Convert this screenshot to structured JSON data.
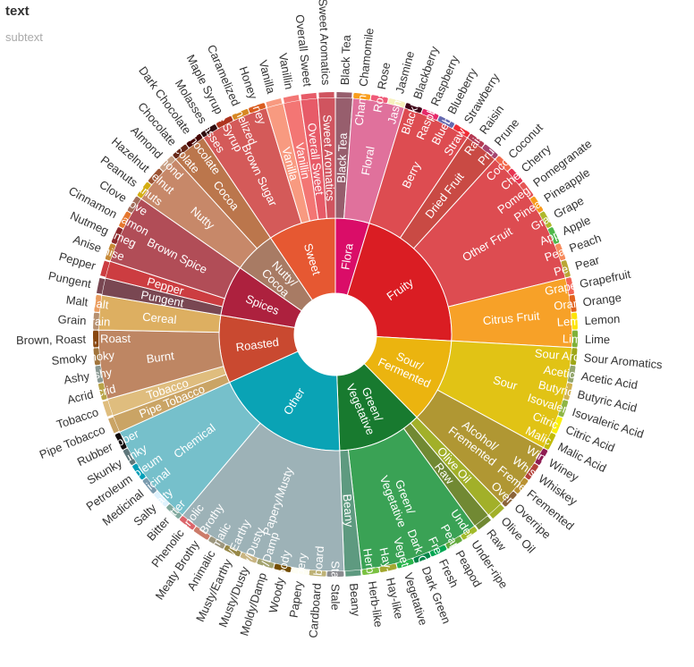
{
  "chart_data": {
    "type": "sunburst",
    "title": "text",
    "subtitle": "subtext",
    "tree": [
      {
        "name": "Flora",
        "color": "#da0d68",
        "children": [
          {
            "name": "Black Tea",
            "value": 1,
            "color": "#975e6d"
          },
          {
            "name": "Floral",
            "color": "#e0719c",
            "children": [
              {
                "name": "Chamomile",
                "value": 1,
                "color": "#f99e1c"
              },
              {
                "name": "Rose",
                "value": 1,
                "color": "#ef5a78"
              },
              {
                "name": "Jasmine",
                "value": 1,
                "color": "#f7f1bd"
              }
            ]
          }
        ]
      },
      {
        "name": "Fruity",
        "color": "#da1d23",
        "children": [
          {
            "name": "Berry",
            "color": "#dd4c51",
            "children": [
              {
                "name": "Blackberry",
                "value": 1,
                "color": "#3e0317"
              },
              {
                "name": "Raspberry",
                "value": 1,
                "color": "#e62969"
              },
              {
                "name": "Blueberry",
                "value": 1,
                "color": "#6569b0"
              },
              {
                "name": "Strawberry",
                "value": 1,
                "color": "#ef2d36"
              }
            ]
          },
          {
            "name": "Dried Fruit",
            "color": "#c94a44",
            "children": [
              {
                "name": "Raisin",
                "value": 1,
                "color": "#b53b54"
              },
              {
                "name": "Prune",
                "value": 1,
                "color": "#a5446f"
              }
            ]
          },
          {
            "name": "Other Fruit",
            "color": "#dd4c51",
            "children": [
              {
                "name": "Coconut",
                "value": 1,
                "color": "#f2684b"
              },
              {
                "name": "Cherry",
                "value": 1,
                "color": "#e73451"
              },
              {
                "name": "Pomegranate",
                "value": 1,
                "color": "#e65656"
              },
              {
                "name": "Pineapple",
                "value": 1,
                "color": "#f89a1c"
              },
              {
                "name": "Grape",
                "value": 1,
                "color": "#aeb92c"
              },
              {
                "name": "Apple",
                "value": 1,
                "color": "#4eb849"
              },
              {
                "name": "Peach",
                "value": 1,
                "color": "#f68a5c"
              },
              {
                "name": "Pear",
                "value": 1,
                "color": "#baa635"
              }
            ]
          },
          {
            "name": "Citrus Fruit",
            "color": "#f7a128",
            "children": [
              {
                "name": "Grapefruit",
                "value": 1,
                "color": "#f26355"
              },
              {
                "name": "Orange",
                "value": 1,
                "color": "#e2631e"
              },
              {
                "name": "Lemon",
                "value": 1,
                "color": "#fde404"
              },
              {
                "name": "Lime",
                "value": 1,
                "color": "#7eb138"
              }
            ]
          }
        ]
      },
      {
        "name": "Sour/\nFermented",
        "color": "#ebb40f",
        "children": [
          {
            "name": "Sour",
            "color": "#e1c315",
            "children": [
              {
                "name": "Sour Aromatics",
                "value": 1,
                "color": "#9ea718"
              },
              {
                "name": "Acetic Acid",
                "value": 1,
                "color": "#94a76f"
              },
              {
                "name": "Butyric Acid",
                "value": 1,
                "color": "#d0b24f"
              },
              {
                "name": "Isovaleric Acid",
                "value": 1,
                "color": "#8eb646"
              },
              {
                "name": "Citric Acid",
                "value": 1,
                "color": "#faef07"
              },
              {
                "name": "Malic Acid",
                "value": 1,
                "color": "#c1ba07"
              }
            ]
          },
          {
            "name": "Alcohol/\nFremented",
            "color": "#b09733",
            "children": [
              {
                "name": "Winey",
                "value": 1,
                "color": "#8f1c53"
              },
              {
                "name": "Whiskey",
                "value": 1,
                "color": "#b34039"
              },
              {
                "name": "Fremented",
                "value": 1,
                "color": "#ba9232"
              },
              {
                "name": "Overripe",
                "value": 1,
                "color": "#8b6439"
              }
            ]
          }
        ]
      },
      {
        "name": "Green/\nVegetative",
        "color": "#187a2f",
        "children": [
          {
            "name": "Olive Oil",
            "value": 1,
            "color": "#a2b029"
          },
          {
            "name": "Raw",
            "value": 1,
            "color": "#718933"
          },
          {
            "name": "Green/\nVegetative",
            "color": "#3aa255",
            "children": [
              {
                "name": "Under-ripe",
                "value": 1,
                "color": "#a2bb2b"
              },
              {
                "name": "Peapod",
                "value": 1,
                "color": "#62aa3c"
              },
              {
                "name": "Fresh",
                "value": 1,
                "color": "#03a653"
              },
              {
                "name": "Dark Green",
                "value": 1,
                "color": "#038549"
              },
              {
                "name": "Vegetative",
                "value": 1,
                "color": "#28b44b"
              },
              {
                "name": "Hay-like",
                "value": 1,
                "color": "#a3a830"
              },
              {
                "name": "Herb-like",
                "value": 1,
                "color": "#7ac141"
              }
            ]
          },
          {
            "name": "Beany",
            "value": 1,
            "color": "#5e9a80"
          }
        ]
      },
      {
        "name": "Other",
        "color": "#0aa3b5",
        "children": [
          {
            "name": "Papery/Musty",
            "color": "#9db2b7",
            "children": [
              {
                "name": "Stale",
                "value": 1,
                "color": "#8b8c90"
              },
              {
                "name": "Cardboard",
                "value": 1,
                "color": "#beb276"
              },
              {
                "name": "Papery",
                "value": 1,
                "color": "#fefef4"
              },
              {
                "name": "Woody",
                "value": 1,
                "color": "#744e03"
              },
              {
                "name": "Moldy/Damp",
                "value": 1,
                "color": "#a3a36f"
              },
              {
                "name": "Musty/Dusty",
                "value": 1,
                "color": "#c9b583"
              },
              {
                "name": "Musty/Earthy",
                "value": 1,
                "color": "#978847"
              },
              {
                "name": "Animalic",
                "value": 1,
                "color": "#9d977f"
              },
              {
                "name": "Meaty Brothy",
                "value": 1,
                "color": "#cc7b6a"
              },
              {
                "name": "Phenolic",
                "value": 1,
                "color": "#db646a"
              }
            ]
          },
          {
            "name": "Chemical",
            "color": "#76c0cb",
            "children": [
              {
                "name": "Bitter",
                "value": 1,
                "color": "#80a89d"
              },
              {
                "name": "Salty",
                "value": 1,
                "color": "#def2fd"
              },
              {
                "name": "Medicinal",
                "value": 1,
                "color": "#7a9bae"
              },
              {
                "name": "Petroleum",
                "value": 1,
                "color": "#039fb8"
              },
              {
                "name": "Skunky",
                "value": 1,
                "color": "#5e777b"
              },
              {
                "name": "Rubber",
                "value": 1,
                "color": "#120c0c"
              }
            ]
          }
        ]
      },
      {
        "name": "Roasted",
        "color": "#c94930",
        "children": [
          {
            "name": "Pipe Tobacco",
            "value": 1,
            "color": "#caa465"
          },
          {
            "name": "Tobacco",
            "value": 1,
            "color": "#dfbd7e"
          },
          {
            "name": "Burnt",
            "color": "#be8663",
            "children": [
              {
                "name": "Acrid",
                "value": 1,
                "color": "#b9a449"
              },
              {
                "name": "Ashy",
                "value": 1,
                "color": "#899893"
              },
              {
                "name": "Smoky",
                "value": 1,
                "color": "#a1743b"
              },
              {
                "name": "Brown, Roast",
                "value": 1,
                "color": "#894810"
              }
            ]
          },
          {
            "name": "Cereal",
            "color": "#ddaf61",
            "children": [
              {
                "name": "Grain",
                "value": 1,
                "color": "#b7906f"
              },
              {
                "name": "Malt",
                "value": 1,
                "color": "#eb9d5f"
              }
            ]
          }
        ]
      },
      {
        "name": "Spices",
        "color": "#ad213e",
        "children": [
          {
            "name": "Pungent",
            "value": 1,
            "color": "#794752"
          },
          {
            "name": "Pepper",
            "value": 1,
            "color": "#cc3d41"
          },
          {
            "name": "Brown Spice",
            "color": "#b14d57",
            "children": [
              {
                "name": "Anise",
                "value": 1,
                "color": "#c78936"
              },
              {
                "name": "Nutmeg",
                "value": 1,
                "color": "#8c292c"
              },
              {
                "name": "Cinnamon",
                "value": 1,
                "color": "#e5762e"
              },
              {
                "name": "Clove",
                "value": 1,
                "color": "#a16c5a"
              }
            ]
          }
        ]
      },
      {
        "name": "Nutty/\nCocoa",
        "color": "#a87b64",
        "children": [
          {
            "name": "Nutty",
            "color": "#c78869",
            "children": [
              {
                "name": "Peanuts",
                "value": 1,
                "color": "#d4ad12"
              },
              {
                "name": "Hazelnut",
                "value": 1,
                "color": "#9d5433"
              },
              {
                "name": "Almond",
                "value": 1,
                "color": "#c89f83"
              }
            ]
          },
          {
            "name": "Cocoa",
            "color": "#bb764c",
            "children": [
              {
                "name": "Chocolate",
                "value": 1,
                "color": "#692a19"
              },
              {
                "name": "Dark Chocolate",
                "value": 1,
                "color": "#470604"
              }
            ]
          }
        ]
      },
      {
        "name": "Sweet",
        "color": "#e65832",
        "children": [
          {
            "name": "Brown Sugar",
            "color": "#d45a59",
            "children": [
              {
                "name": "Molasses",
                "value": 1,
                "color": "#310d0f"
              },
              {
                "name": "Maple Syrup",
                "value": 1,
                "color": "#ae341f"
              },
              {
                "name": "Caramelized",
                "value": 1,
                "color": "#d78823"
              },
              {
                "name": "Honey",
                "value": 1,
                "color": "#da5c1f"
              }
            ]
          },
          {
            "name": "Vanilla",
            "value": 1,
            "color": "#f89a80"
          },
          {
            "name": "Vanillin",
            "value": 1,
            "color": "#f37674"
          },
          {
            "name": "Overall Sweet",
            "value": 1,
            "color": "#e75b68"
          },
          {
            "name": "Sweet Aromatics",
            "value": 1,
            "color": "#d0545f"
          }
        ]
      }
    ]
  }
}
